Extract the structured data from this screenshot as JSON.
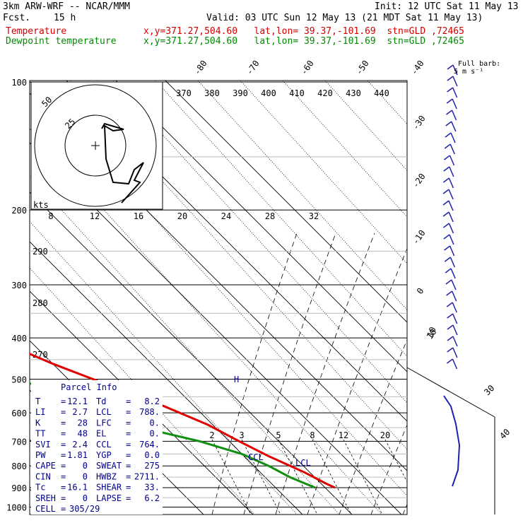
{
  "header": {
    "model": "3km ARW-WRF -- NCAR/MMM",
    "init": "Init: 12 UTC Sat 11 May 13",
    "fcst_label": "Fcst.",
    "fcst_value": "15 h",
    "valid": "Valid: 03 UTC Sun 12 May 13 (21 MDT Sat 11 May 13)",
    "temp_label": "Temperature",
    "dew_label": "Dewpoint temperature",
    "location": "x,y=371.27,504.60   lat,lon= 39.37,-101.69  stn=GLD ,72465"
  },
  "colors": {
    "temperature": "#e00000",
    "dewpoint": "#109010",
    "info": "#00008b",
    "barbs": "#2020b0"
  },
  "chart_data": {
    "type": "line",
    "pressure_levels": [
      100,
      200,
      300,
      400,
      500,
      600,
      700,
      800,
      900,
      1000
    ],
    "pressure_labels": [
      "100",
      "200",
      "300",
      "400",
      "500",
      "600",
      "700",
      "800",
      "900",
      "1000"
    ],
    "ylim": [
      100,
      1000
    ],
    "isotherm_labels": [
      "-80",
      "-70",
      "-60",
      "-50",
      "-40",
      "-30",
      "-20",
      "-10",
      "0",
      "10",
      "20",
      "30",
      "40"
    ],
    "isotherms": [
      -80,
      -70,
      -60,
      -50,
      -40,
      -30,
      -20,
      -10,
      0,
      10,
      20,
      30,
      40
    ],
    "theta_labels": [
      "370",
      "380",
      "390",
      "400",
      "410",
      "420",
      "430",
      "440"
    ],
    "theta_left_labels": [
      "290",
      "280",
      "270"
    ],
    "mixing_ratio_labels": [
      "2",
      "3",
      "5",
      "8",
      "12",
      "20"
    ],
    "series": [
      {
        "name": "Temperature",
        "points": [
          [
            100,
            -65
          ],
          [
            130,
            -58
          ],
          [
            165,
            -52
          ],
          [
            200,
            -52
          ],
          [
            240,
            -55
          ],
          [
            270,
            -50
          ],
          [
            320,
            -40
          ],
          [
            400,
            -27
          ],
          [
            460,
            -20
          ],
          [
            500,
            -15
          ],
          [
            580,
            -6
          ],
          [
            640,
            -1
          ],
          [
            700,
            2
          ],
          [
            760,
            5
          ],
          [
            830,
            9
          ],
          [
            880,
            11
          ],
          [
            900,
            12
          ]
        ]
      },
      {
        "name": "Dewpoint",
        "points": [
          [
            100,
            -85
          ],
          [
            150,
            -80
          ],
          [
            180,
            -78
          ],
          [
            210,
            -75
          ],
          [
            245,
            -70
          ],
          [
            280,
            -64
          ],
          [
            305,
            -68
          ],
          [
            340,
            -57
          ],
          [
            390,
            -42
          ],
          [
            440,
            -35
          ],
          [
            500,
            -30
          ],
          [
            570,
            -22
          ],
          [
            650,
            -15
          ],
          [
            700,
            -6
          ],
          [
            750,
            0
          ],
          [
            800,
            3
          ],
          [
            850,
            5
          ],
          [
            900,
            8
          ]
        ]
      }
    ],
    "hodograph": {
      "units": "kts",
      "ring_labels": [
        "25",
        "50"
      ],
      "speed_labels": [
        "8",
        "12",
        "16",
        "20",
        "24",
        "28",
        "32"
      ]
    },
    "wind_legend": {
      "title": "Full barb:",
      "value": "5 m s⁻¹"
    },
    "barb_ring_labels": [
      "10",
      "30",
      "40"
    ],
    "annotations": [
      "CCL",
      "LCL",
      "H"
    ]
  },
  "parcel": {
    "title": "Parcel Info",
    "rows": [
      {
        "l1": "T",
        "v1": "12.1",
        "l2": "Td",
        "v2": "8.2"
      },
      {
        "l1": "LI",
        "v1": "2.7",
        "l2": "LCL",
        "v2": "788."
      },
      {
        "l1": "K",
        "v1": "28",
        "l2": "LFC",
        "v2": "0."
      },
      {
        "l1": "TT",
        "v1": "48",
        "l2": "EL",
        "v2": "0."
      },
      {
        "l1": "SVI",
        "v1": "2.4",
        "l2": "CCL",
        "v2": "764."
      },
      {
        "l1": "PW",
        "v1": "1.81",
        "l2": "YGP",
        "v2": "0.0"
      },
      {
        "l1": "CAPE",
        "v1": "0",
        "l2": "SWEAT",
        "v2": "275"
      },
      {
        "l1": "CIN",
        "v1": "0",
        "l2": "HWBZ",
        "v2": "2711."
      },
      {
        "l1": "Tc",
        "v1": "16.1",
        "l2": "SHEAR",
        "v2": "33."
      },
      {
        "l1": "SREH",
        "v1": "0",
        "l2": "LAPSE",
        "v2": "6.2"
      }
    ],
    "cell_label": "CELL",
    "cell_value": "305/29"
  }
}
